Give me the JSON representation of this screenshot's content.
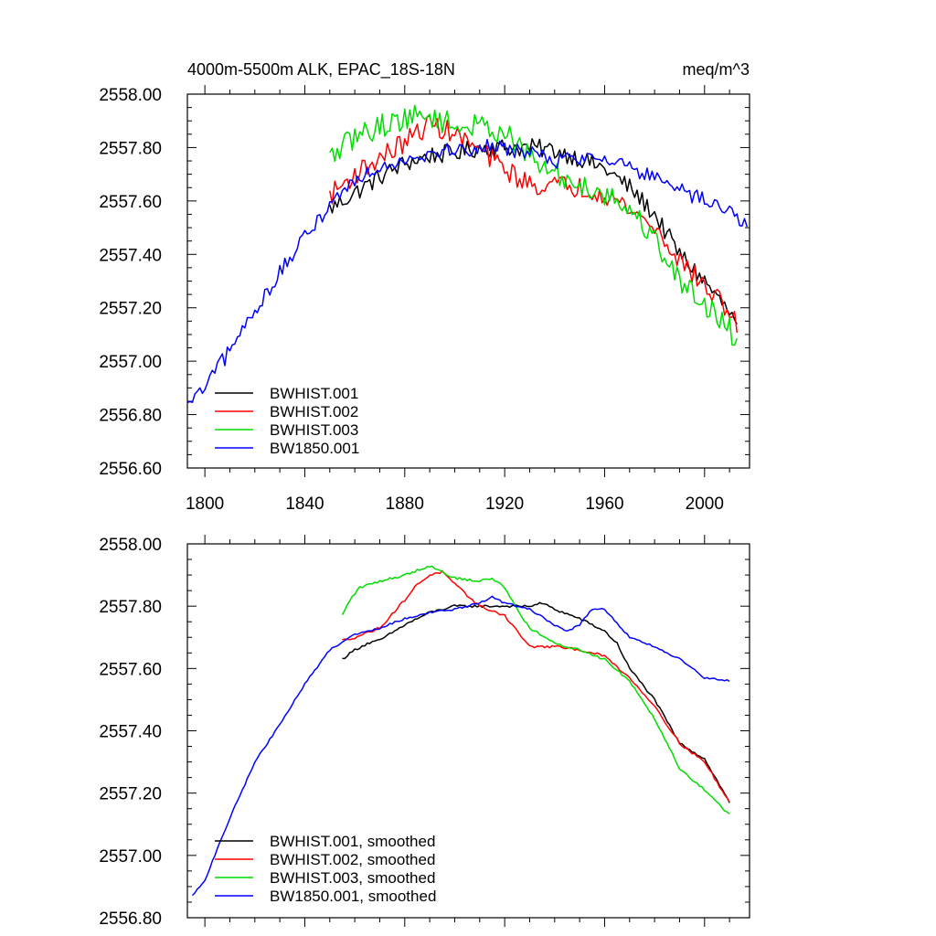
{
  "chart_data": [
    {
      "type": "line",
      "title": "4000m-5500m ALK, EPAC_18S-18N",
      "units": "meq/m^3",
      "xlabel": "",
      "ylabel": "",
      "xlim": [
        1793,
        2018
      ],
      "ylim": [
        2556.6,
        2558.0
      ],
      "xticks": [
        1800,
        1840,
        1880,
        1920,
        1960,
        2000
      ],
      "xtick_labels": [
        "1800",
        "1840",
        "1880",
        "1920",
        "1960",
        "2000"
      ],
      "yticks": [
        2556.6,
        2556.8,
        2557.0,
        2557.2,
        2557.4,
        2557.6,
        2557.8,
        2558.0
      ],
      "ytick_labels": [
        "2556.60",
        "2556.80",
        "2557.00",
        "2557.20",
        "2557.40",
        "2557.60",
        "2557.80",
        "2558.00"
      ],
      "legend_position": "bottom-left",
      "series": [
        {
          "name": "BWHIST.001",
          "color": "#000000",
          "noise": 0.035,
          "x": [
            1850,
            1860,
            1870,
            1880,
            1890,
            1900,
            1910,
            1920,
            1930,
            1940,
            1950,
            1960,
            1970,
            1980,
            1990,
            2000,
            2010,
            2013
          ],
          "values": [
            2557.57,
            2557.63,
            2557.69,
            2557.74,
            2557.77,
            2557.78,
            2557.8,
            2557.8,
            2557.8,
            2557.79,
            2557.76,
            2557.72,
            2557.65,
            2557.55,
            2557.4,
            2557.3,
            2557.18,
            2557.13
          ]
        },
        {
          "name": "BWHIST.002",
          "color": "#ff0000",
          "noise": 0.04,
          "x": [
            1850,
            1860,
            1870,
            1880,
            1890,
            1900,
            1910,
            1920,
            1930,
            1940,
            1950,
            1960,
            1970,
            1980,
            1990,
            2000,
            2010,
            2013
          ],
          "values": [
            2557.62,
            2557.7,
            2557.76,
            2557.82,
            2557.89,
            2557.85,
            2557.79,
            2557.72,
            2557.66,
            2557.66,
            2557.65,
            2557.63,
            2557.57,
            2557.5,
            2557.38,
            2557.28,
            2557.19,
            2557.13
          ]
        },
        {
          "name": "BWHIST.003",
          "color": "#00dd00",
          "noise": 0.045,
          "x": [
            1850,
            1860,
            1870,
            1880,
            1890,
            1900,
            1910,
            1920,
            1930,
            1940,
            1950,
            1960,
            1970,
            1980,
            1990,
            2000,
            2010,
            2013
          ],
          "values": [
            2557.76,
            2557.84,
            2557.88,
            2557.91,
            2557.92,
            2557.88,
            2557.88,
            2557.86,
            2557.76,
            2557.7,
            2557.66,
            2557.63,
            2557.57,
            2557.46,
            2557.3,
            2557.22,
            2557.12,
            2557.06
          ]
        },
        {
          "name": "BW1850.001",
          "color": "#0000ff",
          "noise": 0.03,
          "x": [
            1793,
            1800,
            1810,
            1820,
            1830,
            1840,
            1850,
            1860,
            1870,
            1880,
            1890,
            1900,
            1910,
            1920,
            1930,
            1940,
            1950,
            1960,
            1970,
            1980,
            1990,
            2000,
            2010,
            2017
          ],
          "values": [
            2556.83,
            2556.9,
            2557.04,
            2557.19,
            2557.33,
            2557.46,
            2557.59,
            2557.68,
            2557.73,
            2557.76,
            2557.78,
            2557.79,
            2557.8,
            2557.8,
            2557.78,
            2557.75,
            2557.76,
            2557.77,
            2557.73,
            2557.68,
            2557.64,
            2557.6,
            2557.56,
            2557.52
          ]
        }
      ]
    },
    {
      "type": "line",
      "title": "",
      "xlabel": "",
      "ylabel": "",
      "xlim": [
        1793,
        2018
      ],
      "ylim": [
        2556.8,
        2558.0
      ],
      "xticks": [
        1800,
        1840,
        1880,
        1920,
        1960,
        2000
      ],
      "yticks": [
        2556.8,
        2557.0,
        2557.2,
        2557.4,
        2557.6,
        2557.8,
        2558.0
      ],
      "ytick_labels": [
        "2556.80",
        "2557.00",
        "2557.20",
        "2557.40",
        "2557.60",
        "2557.80",
        "2558.00"
      ],
      "legend_position": "bottom-left",
      "series": [
        {
          "name": "BWHIST.001, smoothed",
          "color": "#000000",
          "noise": 0.004,
          "x": [
            1855,
            1860,
            1865,
            1870,
            1880,
            1890,
            1900,
            1910,
            1920,
            1930,
            1935,
            1940,
            1950,
            1960,
            1965,
            1970,
            1980,
            1990,
            2000,
            2010
          ],
          "values": [
            2557.63,
            2557.66,
            2557.68,
            2557.69,
            2557.74,
            2557.78,
            2557.8,
            2557.8,
            2557.8,
            2557.8,
            2557.81,
            2557.79,
            2557.76,
            2557.72,
            2557.68,
            2557.6,
            2557.5,
            2557.36,
            2557.31,
            2557.17
          ]
        },
        {
          "name": "BWHIST.002, smoothed",
          "color": "#ff0000",
          "noise": 0.004,
          "x": [
            1855,
            1860,
            1870,
            1880,
            1885,
            1890,
            1895,
            1900,
            1910,
            1920,
            1925,
            1930,
            1935,
            1940,
            1950,
            1960,
            1970,
            1980,
            1990,
            2000,
            2010
          ],
          "values": [
            2557.69,
            2557.7,
            2557.73,
            2557.82,
            2557.87,
            2557.9,
            2557.91,
            2557.87,
            2557.8,
            2557.77,
            2557.72,
            2557.67,
            2557.67,
            2557.67,
            2557.66,
            2557.64,
            2557.57,
            2557.48,
            2557.36,
            2557.3,
            2557.17
          ]
        },
        {
          "name": "BWHIST.003, smoothed",
          "color": "#00dd00",
          "noise": 0.004,
          "x": [
            1855,
            1858,
            1862,
            1870,
            1880,
            1890,
            1895,
            1900,
            1910,
            1915,
            1920,
            1925,
            1930,
            1940,
            1950,
            1960,
            1970,
            1980,
            1990,
            2000,
            2010
          ],
          "values": [
            2557.77,
            2557.82,
            2557.86,
            2557.88,
            2557.9,
            2557.93,
            2557.91,
            2557.89,
            2557.88,
            2557.89,
            2557.86,
            2557.79,
            2557.73,
            2557.68,
            2557.66,
            2557.63,
            2557.56,
            2557.44,
            2557.28,
            2557.21,
            2557.13
          ]
        },
        {
          "name": "BW1850.001, smoothed",
          "color": "#0000ff",
          "noise": 0.003,
          "x": [
            1795,
            1800,
            1810,
            1820,
            1830,
            1840,
            1850,
            1860,
            1870,
            1880,
            1890,
            1900,
            1910,
            1915,
            1920,
            1930,
            1940,
            1945,
            1950,
            1955,
            1960,
            1970,
            1980,
            1990,
            2000,
            2010
          ],
          "values": [
            2556.87,
            2556.92,
            2557.12,
            2557.3,
            2557.42,
            2557.55,
            2557.66,
            2557.71,
            2557.73,
            2557.76,
            2557.78,
            2557.79,
            2557.81,
            2557.83,
            2557.81,
            2557.79,
            2557.74,
            2557.72,
            2557.74,
            2557.79,
            2557.79,
            2557.7,
            2557.67,
            2557.63,
            2557.57,
            2557.56
          ]
        }
      ]
    }
  ]
}
